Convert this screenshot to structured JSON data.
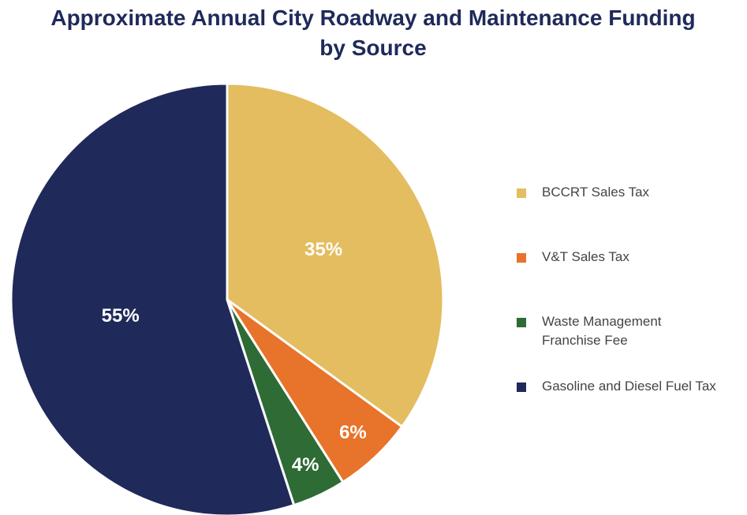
{
  "chart_data": {
    "type": "pie",
    "title": "Approximate Annual City Roadway and Maintenance Funding by Source",
    "categories": [
      "BCCRT Sales Tax",
      "V&T Sales Tax",
      "Waste Management Franchise Fee",
      "Gasoline and Diesel Fuel Tax"
    ],
    "values": [
      35,
      6,
      4,
      55
    ],
    "value_labels": [
      "35%",
      "6%",
      "4%",
      "55%"
    ],
    "colors": [
      "#e3bd5f",
      "#e8732a",
      "#2e6b35",
      "#1f2a5a"
    ],
    "legend": "right"
  }
}
